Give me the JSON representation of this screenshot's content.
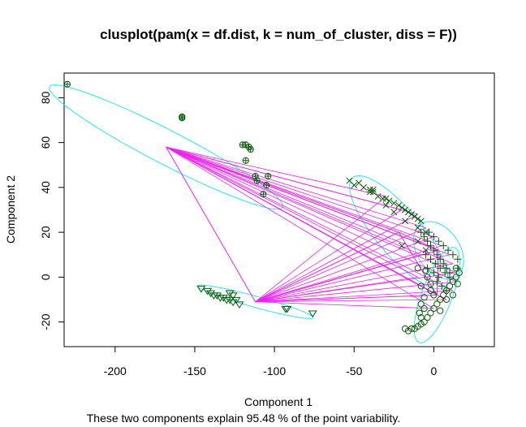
{
  "chart_data": {
    "type": "scatter",
    "title": "clusplot(pam(x = df.dist, k = num_of_cluster, diss = F))",
    "xlabel": "Component 1",
    "ylabel": "Component 2",
    "subtitle": "These two components explain 95.48 % of the point variability.",
    "xlim": [
      -232,
      38
    ],
    "ylim": [
      -31,
      91
    ],
    "xticks": [
      -200,
      -150,
      -100,
      -50,
      0
    ],
    "yticks": [
      -20,
      0,
      20,
      40,
      60,
      80
    ],
    "xtick_labels": [
      "-200",
      "-150",
      "-100",
      "-50",
      "0"
    ],
    "ytick_labels": [
      "-20",
      "0",
      "20",
      "40",
      "60",
      "80"
    ],
    "colors": {
      "points": "#0b5a0b",
      "ellipse": "#25e8f0",
      "lines": "#ee22ee",
      "frame": "#000000"
    },
    "clusters": [
      {
        "symbol": "circle-plus",
        "ellipse": {
          "center": [
            -168,
            58
          ],
          "semi_major": 78,
          "semi_minor": 8,
          "angle_deg": 160
        },
        "points": [
          [
            -230,
            86
          ],
          [
            -158,
            71
          ],
          [
            -158,
            71.5
          ],
          [
            -120,
            59
          ],
          [
            -118,
            59
          ],
          [
            -116,
            58
          ],
          [
            -115,
            57
          ],
          [
            -118,
            52
          ],
          [
            -112,
            45
          ],
          [
            -111,
            43
          ],
          [
            -104,
            45
          ],
          [
            -105,
            41
          ],
          [
            -107,
            37
          ]
        ]
      },
      {
        "symbol": "cross",
        "ellipse": {
          "center": [
            -22,
            20
          ],
          "semi_major": 38,
          "semi_minor": 12,
          "angle_deg": -38
        },
        "points": [
          [
            -53,
            43
          ],
          [
            -50,
            41
          ],
          [
            -47,
            42
          ],
          [
            -44,
            40
          ],
          [
            -40,
            39
          ],
          [
            -38,
            38
          ],
          [
            -35,
            36
          ],
          [
            -32,
            35
          ],
          [
            -30,
            35
          ],
          [
            -28,
            34
          ],
          [
            -25,
            33
          ],
          [
            -22,
            32
          ],
          [
            -20,
            31
          ],
          [
            -18,
            30
          ],
          [
            -16,
            29
          ],
          [
            -14,
            28
          ],
          [
            -12,
            27
          ],
          [
            -10,
            26
          ],
          [
            -8,
            25
          ],
          [
            -30,
            32
          ],
          [
            -25,
            29
          ],
          [
            -18,
            25
          ],
          [
            -10,
            22
          ],
          [
            -5,
            20
          ],
          [
            -40,
            38
          ],
          [
            -38,
            39
          ],
          [
            -20,
            14
          ],
          [
            -10,
            16
          ],
          [
            -5,
            12
          ]
        ]
      },
      {
        "symbol": "plus",
        "ellipse": {
          "center": [
            3,
            12
          ],
          "semi_major": 17,
          "semi_minor": 11,
          "angle_deg": -30
        },
        "points": [
          [
            -8,
            20
          ],
          [
            -6,
            18
          ],
          [
            -4,
            16
          ],
          [
            -2,
            14
          ],
          [
            0,
            12
          ],
          [
            2,
            10
          ],
          [
            4,
            8
          ],
          [
            6,
            6
          ],
          [
            8,
            4
          ],
          [
            10,
            2
          ],
          [
            -3,
            20
          ],
          [
            0,
            18
          ],
          [
            3,
            16
          ],
          [
            6,
            14
          ],
          [
            9,
            12
          ],
          [
            12,
            10
          ],
          [
            -5,
            10
          ],
          [
            -2,
            8
          ],
          [
            1,
            6
          ],
          [
            4,
            4
          ],
          [
            7,
            2
          ],
          [
            10,
            0
          ],
          [
            2,
            -2
          ],
          [
            5,
            -4
          ],
          [
            8,
            -6
          ],
          [
            -4,
            4
          ],
          [
            0,
            2
          ],
          [
            3,
            0
          ],
          [
            15,
            8
          ],
          [
            15,
            4
          ]
        ]
      },
      {
        "symbol": "circle",
        "ellipse": {
          "center": [
            2,
            -8
          ],
          "semi_major": 24,
          "semi_minor": 9,
          "angle_deg": 60
        },
        "points": [
          [
            -14,
            -23
          ],
          [
            -12,
            -23
          ],
          [
            -10,
            -22
          ],
          [
            -8,
            -21
          ],
          [
            -6,
            -20
          ],
          [
            -4,
            -18
          ],
          [
            -2,
            -16
          ],
          [
            0,
            -14
          ],
          [
            2,
            -12
          ],
          [
            4,
            -10
          ],
          [
            6,
            -8
          ],
          [
            8,
            -6
          ],
          [
            10,
            -4
          ],
          [
            12,
            -2
          ],
          [
            14,
            0
          ],
          [
            -8,
            -12
          ],
          [
            -6,
            -14
          ],
          [
            -5,
            3
          ],
          [
            -2,
            -3
          ],
          [
            -8,
            -4
          ],
          [
            -2,
            -6
          ],
          [
            0,
            -8
          ],
          [
            -6,
            -9
          ],
          [
            -9,
            -16
          ],
          [
            -8,
            -18
          ],
          [
            -16,
            -24
          ],
          [
            -18,
            -23
          ],
          [
            -10,
            4
          ],
          [
            -4,
            0
          ],
          [
            14,
            4
          ],
          [
            16,
            2
          ],
          [
            15,
            -3
          ],
          [
            12,
            -8
          ],
          [
            8,
            -10
          ],
          [
            4,
            -15
          ]
        ]
      },
      {
        "symbol": "triangle-down",
        "ellipse": {
          "center": [
            -112,
            -11
          ],
          "semi_major": 37,
          "semi_minor": 2.5,
          "angle_deg": -11
        },
        "points": [
          [
            -146,
            -5
          ],
          [
            -142,
            -6
          ],
          [
            -140,
            -7
          ],
          [
            -138,
            -8
          ],
          [
            -136,
            -8
          ],
          [
            -134,
            -9
          ],
          [
            -132,
            -9
          ],
          [
            -130,
            -10
          ],
          [
            -128,
            -10
          ],
          [
            -126,
            -11
          ],
          [
            -124,
            -10
          ],
          [
            -128,
            -7
          ],
          [
            -126,
            -8
          ],
          [
            -122,
            -12
          ],
          [
            -93,
            -14
          ],
          [
            -92,
            -14
          ],
          [
            -76,
            -16
          ]
        ]
      }
    ]
  }
}
